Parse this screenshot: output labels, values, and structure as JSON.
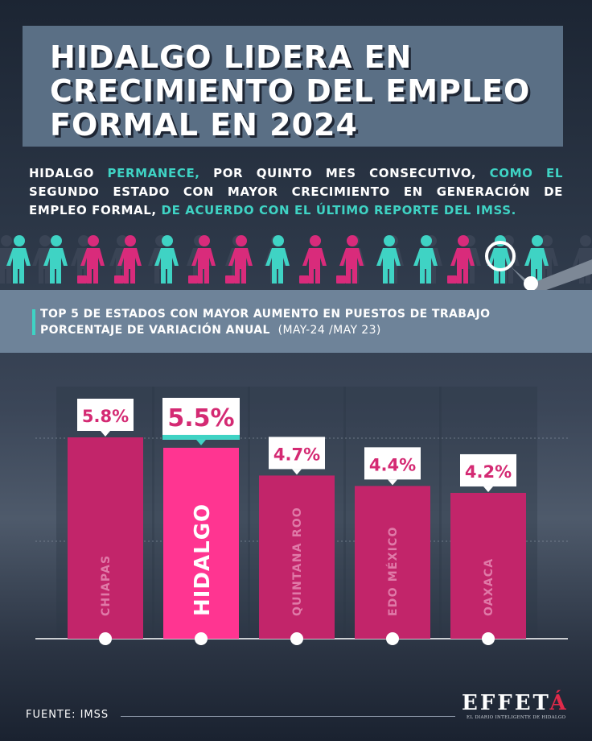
{
  "title": {
    "line1": "HIDALGO LIDERA EN",
    "line2": "CRECIMIENTO DEL EMPLEO",
    "line3": "FORMAL EN 2024"
  },
  "intro": {
    "p1": "HIDALGO ",
    "p2": "PERMANECE,",
    "p3": " POR QUINTO MES CONSECUTIVO, ",
    "p4": "COMO EL",
    "p5": " SEGUNDO ESTADO CON MAYOR CRECIMIENTO EN GENERACIÓN DE EMPLEO FORMAL, ",
    "p6": "DE ACUERDO CON EL ÚLTIMO REPORTE DEL IMSS."
  },
  "subtitle": {
    "line1": "TOP 5 DE ESTADOS CON MAYOR AUMENTO EN PUESTOS DE TRABAJO",
    "line2_bold": "PORCENTAJE DE VARIACIÓN ANUAL",
    "line2_rest": "(MAY-24 /MAY 23)"
  },
  "chart_data": {
    "type": "bar",
    "categories": [
      "CHIAPAS",
      "HIDALGO",
      "QUINTANA ROO",
      "EDO MÉXICO",
      "OAXACA"
    ],
    "values": [
      5.8,
      5.5,
      4.7,
      4.4,
      4.2
    ],
    "data_labels": [
      "5.8%",
      "5.5%",
      "4.7%",
      "4.4%",
      "4.2%"
    ],
    "highlight": "HIDALGO",
    "ylim": [
      0,
      5.8
    ],
    "colors": {
      "bar": "#c2256a",
      "highlight": "#ff3591",
      "teal": "#3fd3c4"
    }
  },
  "footer": {
    "source": "FUENTE: IMSS",
    "logo": "EFFET",
    "logo_accent": "Á",
    "tagline": "EL DIARIO INTELIGENTE DE HIDALGO"
  }
}
